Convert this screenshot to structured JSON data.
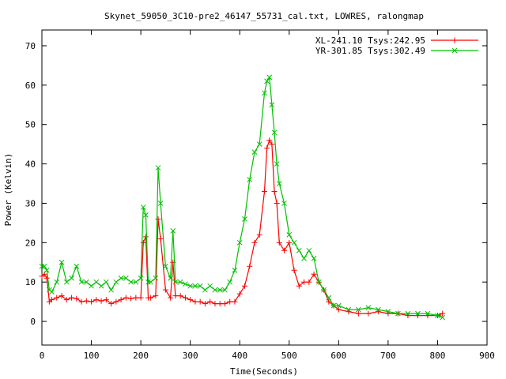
{
  "chart_data": {
    "type": "line",
    "title": "Skynet_59050_3C10-pre2_46147_55731_cal.txt, LOWRES, ralongmap",
    "xlabel": "Time(Seconds)",
    "ylabel": "Power (Kelvin)",
    "xlim": [
      0,
      900
    ],
    "ylim": [
      -6,
      74
    ],
    "xticks": [
      0,
      100,
      200,
      300,
      400,
      500,
      600,
      700,
      800,
      900
    ],
    "yticks": [
      0,
      10,
      20,
      30,
      40,
      50,
      60,
      70
    ],
    "grid": false,
    "legend_position": "top-right",
    "series": [
      {
        "name": "XL-241.10 Tsys:242.95",
        "color": "#ff0000",
        "marker": "plus",
        "x": [
          0,
          5,
          10,
          15,
          20,
          30,
          40,
          50,
          60,
          70,
          80,
          90,
          100,
          110,
          120,
          130,
          140,
          150,
          160,
          170,
          180,
          190,
          200,
          205,
          210,
          215,
          220,
          230,
          235,
          240,
          250,
          260,
          265,
          270,
          280,
          290,
          300,
          310,
          320,
          330,
          340,
          350,
          360,
          370,
          380,
          390,
          400,
          410,
          420,
          430,
          440,
          450,
          455,
          460,
          465,
          470,
          475,
          480,
          490,
          500,
          510,
          520,
          530,
          540,
          550,
          560,
          570,
          580,
          590,
          600,
          620,
          640,
          660,
          680,
          700,
          720,
          740,
          760,
          780,
          800,
          810
        ],
        "y": [
          11.5,
          12,
          11,
          5,
          5.5,
          6,
          6.5,
          5.5,
          6,
          5.8,
          5,
          5.2,
          5,
          5.5,
          5.2,
          5.5,
          4.5,
          5,
          5.5,
          6,
          5.8,
          6,
          6,
          20,
          21.5,
          6,
          6,
          6.5,
          26,
          21,
          8,
          6,
          15,
          6.5,
          6.5,
          6,
          5.5,
          5,
          5,
          4.5,
          5,
          4.5,
          4.5,
          4.5,
          5,
          5,
          7,
          9,
          14,
          20,
          22,
          33,
          44,
          46,
          45,
          33,
          30,
          20,
          18,
          20,
          13,
          9,
          10,
          10,
          12,
          10,
          8,
          5,
          4,
          3,
          2.5,
          2,
          2,
          2.5,
          2,
          2,
          1.5,
          1.5,
          1.5,
          1.5,
          2
        ]
      },
      {
        "name": "YR-301.85 Tsys:302.49",
        "color": "#00c000",
        "marker": "cross",
        "x": [
          0,
          5,
          10,
          15,
          20,
          30,
          40,
          50,
          60,
          70,
          80,
          90,
          100,
          110,
          120,
          130,
          140,
          150,
          160,
          170,
          180,
          190,
          200,
          205,
          210,
          215,
          220,
          230,
          235,
          240,
          250,
          260,
          265,
          270,
          280,
          290,
          300,
          310,
          320,
          330,
          340,
          350,
          360,
          370,
          380,
          390,
          400,
          410,
          420,
          430,
          440,
          450,
          455,
          460,
          465,
          470,
          475,
          480,
          490,
          500,
          510,
          520,
          530,
          540,
          550,
          560,
          570,
          580,
          590,
          600,
          620,
          640,
          660,
          680,
          700,
          720,
          740,
          760,
          780,
          800,
          810
        ],
        "y": [
          14,
          14,
          13,
          8,
          7.5,
          10,
          15,
          10,
          11,
          14,
          10,
          10,
          9,
          10,
          9,
          10,
          8,
          10,
          11,
          11,
          10,
          10,
          11,
          29,
          27,
          10,
          10,
          11,
          39,
          30,
          14,
          11,
          23,
          10,
          10,
          9.5,
          9,
          9,
          9,
          8,
          9,
          8,
          8,
          8,
          10,
          13,
          20,
          26,
          36,
          43,
          45,
          58,
          61,
          62,
          55,
          48,
          40,
          35,
          30,
          22,
          20,
          18,
          16,
          18,
          16,
          10,
          8,
          6,
          4,
          4,
          3,
          3,
          3.5,
          3,
          2.5,
          2,
          2,
          2,
          2,
          1.5,
          1
        ]
      }
    ]
  }
}
